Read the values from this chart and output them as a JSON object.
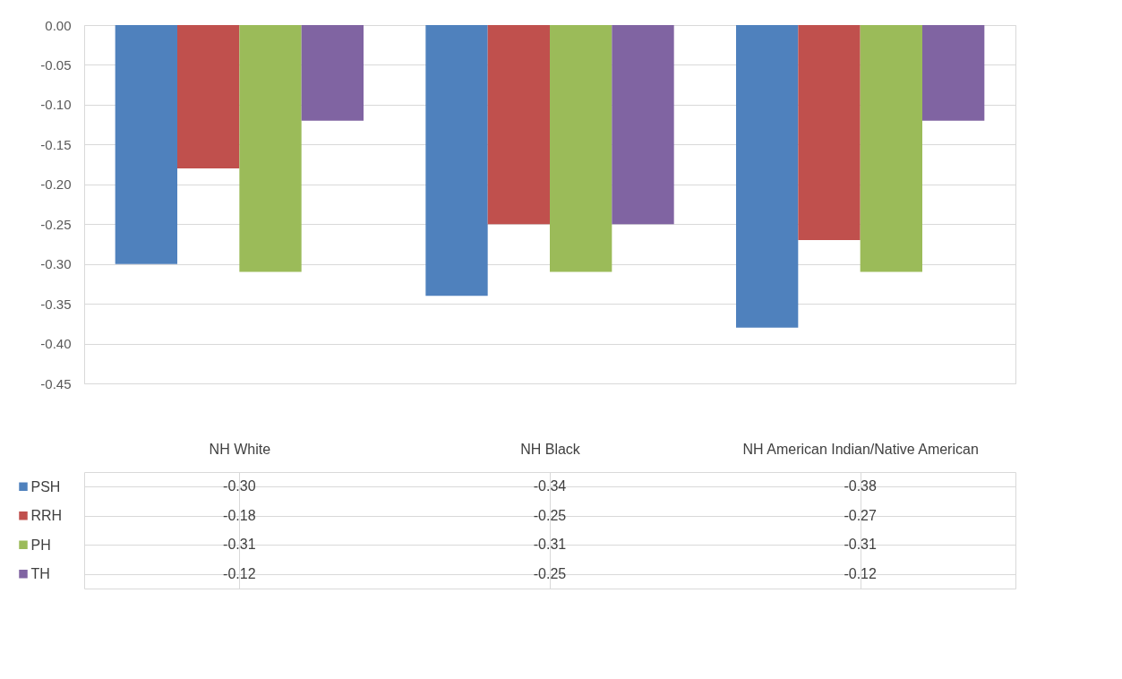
{
  "chart_data": {
    "type": "bar",
    "categories": [
      "NH White",
      "NH Black",
      "NH American Indian/Native American"
    ],
    "series": [
      {
        "name": "PSH",
        "color": "#4f81bd",
        "values": [
          -0.3,
          -0.34,
          -0.38
        ],
        "value_labels": [
          "-0.30",
          "-0.34",
          "-0.38"
        ]
      },
      {
        "name": "RRH",
        "color": "#c0504d",
        "values": [
          -0.18,
          -0.25,
          -0.27
        ],
        "value_labels": [
          "-0.18",
          "-0.25",
          "-0.27"
        ]
      },
      {
        "name": "PH",
        "color": "#9bbb59",
        "values": [
          -0.31,
          -0.31,
          -0.31
        ],
        "value_labels": [
          "-0.31",
          "-0.31",
          "-0.31"
        ]
      },
      {
        "name": "TH",
        "color": "#8064a2",
        "values": [
          -0.12,
          -0.25,
          -0.12
        ],
        "value_labels": [
          "-0.12",
          "-0.25",
          "-0.12"
        ]
      }
    ],
    "ylim": [
      -0.45,
      0
    ],
    "yticks": [
      {
        "value": 0,
        "label": "0.00"
      },
      {
        "value": -0.05,
        "label": "-0.05"
      },
      {
        "value": -0.1,
        "label": "-0.10"
      },
      {
        "value": -0.15,
        "label": "-0.15"
      },
      {
        "value": -0.2,
        "label": "-0.20"
      },
      {
        "value": -0.25,
        "label": "-0.25"
      },
      {
        "value": -0.3,
        "label": "-0.30"
      },
      {
        "value": -0.35,
        "label": "-0.35"
      },
      {
        "value": -0.4,
        "label": "-0.40"
      },
      {
        "value": -0.45,
        "label": "-0.45"
      }
    ],
    "grid": "y",
    "legend": "bottom left"
  }
}
